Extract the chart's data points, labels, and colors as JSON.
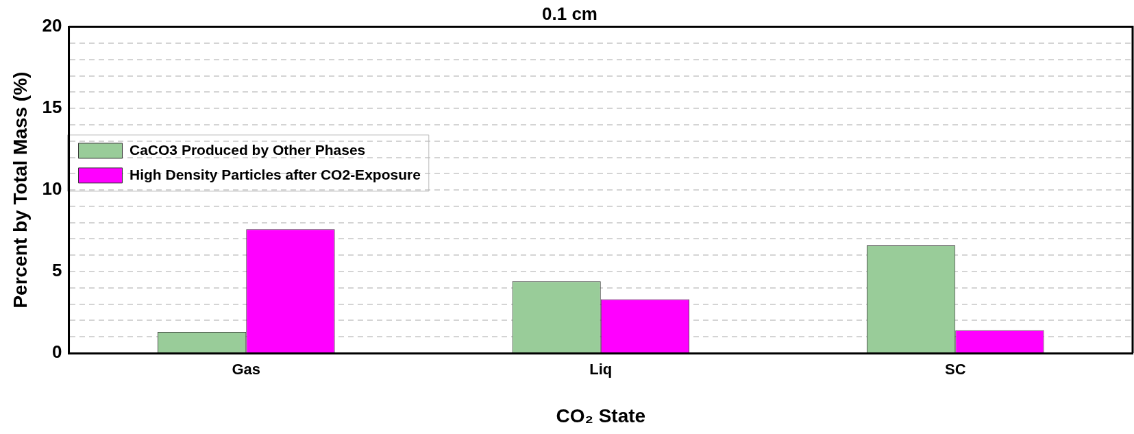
{
  "chart_data": {
    "type": "bar",
    "title": "0.1 cm",
    "xlabel": "CO₂ State",
    "ylabel": "Percent by Total Mass (%)",
    "categories": [
      "Gas",
      "Liq",
      "SC"
    ],
    "series": [
      {
        "name": "CaCO3 Produced by Other Phases",
        "color": "#99cc99",
        "values": [
          1.3,
          4.4,
          6.6
        ]
      },
      {
        "name": "High Density Particles after CO2-Exposure",
        "color": "#ff00ff",
        "values": [
          7.6,
          3.3,
          1.4
        ]
      }
    ],
    "ylim": [
      0,
      20
    ],
    "yticks": [
      0,
      {
        "value": 1,
        "label": null
      },
      {
        "value": 2,
        "label": null
      },
      {
        "value": 3,
        "label": null
      },
      {
        "value": 4,
        "label": null
      },
      5,
      {
        "value": 6,
        "label": null
      },
      {
        "value": 7,
        "label": null
      },
      {
        "value": 8,
        "label": null
      },
      {
        "value": 9,
        "label": null
      },
      10,
      {
        "value": 11,
        "label": null
      },
      {
        "value": 12,
        "label": null
      },
      {
        "value": 13,
        "label": null
      },
      {
        "value": 14,
        "label": null
      },
      15,
      {
        "value": 16,
        "label": null
      },
      {
        "value": 17,
        "label": null
      },
      {
        "value": 18,
        "label": null
      },
      {
        "value": 19,
        "label": null
      },
      20
    ],
    "grid": "y",
    "line_style": "dashed",
    "legend": "top"
  }
}
